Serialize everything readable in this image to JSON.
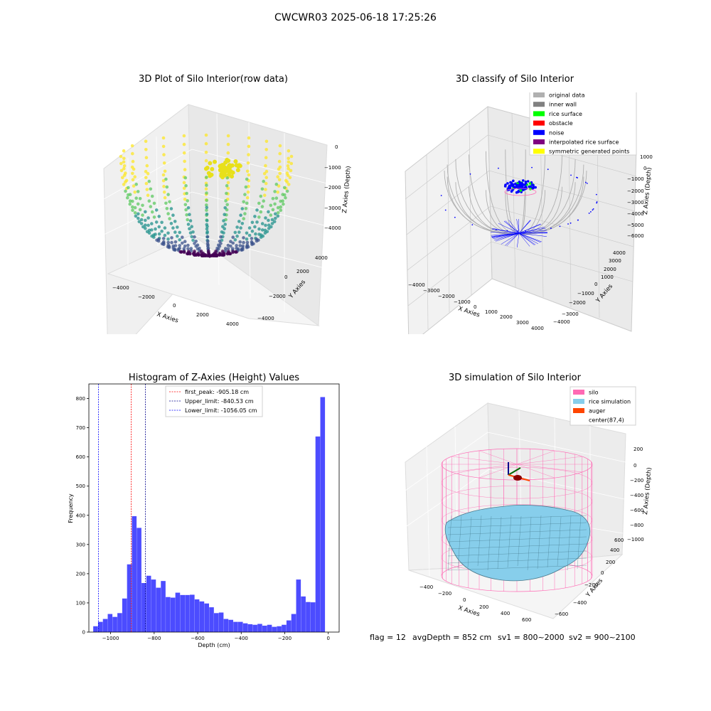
{
  "suptitle": "CWCWR03 2025-06-18 17:25:26",
  "footer": {
    "flag": "flag = 12",
    "avg": "avgDepth = 852 cm",
    "sv1": "sv1 = 800~2000",
    "sv2": "sv2 = 900~2100"
  },
  "chart_data": [
    {
      "type": "scatter",
      "subtype": "3d-scatter",
      "title": "3D Plot of Silo Interior(row data)",
      "xlabel": "X Axies",
      "ylabel": "Y Axies",
      "zlabel": "Z Axies (Depth)",
      "xticks": [
        "−4000",
        "−2000",
        "0",
        "2000",
        "4000"
      ],
      "yticks": [
        "−4000",
        "−2000",
        "0",
        "2000",
        "4000"
      ],
      "zticks": [
        "−4000",
        "−3000",
        "−2000",
        "−1000",
        "0"
      ],
      "colormap": "viridis"
    },
    {
      "type": "scatter",
      "subtype": "3d-scatter",
      "title": "3D classify of Silo Interior",
      "xlabel": "X Axies",
      "ylabel": "Y Axies",
      "zlabel": "Z Axies (Depth)",
      "xticks": [
        "−4000",
        "−3000",
        "−2000",
        "−1000",
        "0",
        "1000",
        "2000",
        "3000",
        "4000"
      ],
      "yticks": [
        "−4000",
        "−3000",
        "−2000",
        "−1000",
        "0",
        "1000",
        "2000",
        "3000",
        "4000"
      ],
      "zticks": [
        "−6000",
        "−5000",
        "−4000",
        "−3000",
        "−2000",
        "−1000",
        "0",
        "1000"
      ],
      "legend": [
        {
          "label": "original data",
          "color": "#b0b0b0"
        },
        {
          "label": "inner wall",
          "color": "#808080"
        },
        {
          "label": "rice surface",
          "color": "#00ff00"
        },
        {
          "label": "obstacle",
          "color": "#ff0000"
        },
        {
          "label": "noise",
          "color": "#0000ff"
        },
        {
          "label": "interpolated rice surface",
          "color": "#800080"
        },
        {
          "label": "symmetric generated points",
          "color": "#ffff00"
        }
      ],
      "legend_position": "top-right"
    },
    {
      "type": "bar",
      "subtype": "histogram",
      "title": "Histogram of Z-Axies (Height) Values",
      "xlabel": "Depth (cm)",
      "ylabel": "Frequency",
      "xlim": [
        -1100,
        50
      ],
      "ylim": [
        0,
        850
      ],
      "xticks": [
        -1000,
        -800,
        -600,
        -400,
        -200,
        0
      ],
      "xtick_labels": [
        "−1000",
        "−800",
        "−600",
        "−400",
        "−200",
        "0"
      ],
      "yticks": [
        0,
        100,
        200,
        300,
        400,
        500,
        600,
        700,
        800
      ],
      "bin_start": -1080,
      "bin_width": 22.2,
      "values": [
        20,
        35,
        45,
        62,
        52,
        65,
        115,
        232,
        397,
        357,
        168,
        193,
        180,
        152,
        175,
        120,
        118,
        135,
        127,
        127,
        128,
        112,
        105,
        98,
        85,
        65,
        67,
        45,
        42,
        35,
        35,
        30,
        27,
        25,
        28,
        22,
        25,
        18,
        20,
        25,
        40,
        62,
        180,
        122,
        103,
        102,
        670,
        805
      ],
      "bar_color": "#0000ff",
      "vlines": [
        {
          "label": "first_peak: -905.18 cm",
          "x": -905.18,
          "color": "#ff0000"
        },
        {
          "label": "Upper_limit: -840.53 cm",
          "x": -840.53,
          "color": "#00008b"
        },
        {
          "label": "Lower_limit: -1056.05 cm",
          "x": -1056.05,
          "color": "#0000ff"
        }
      ],
      "legend_position": "top-center"
    },
    {
      "type": "area",
      "subtype": "3d-surface",
      "title": "3D simulation of Silo Interior",
      "xlabel": "X Axies",
      "ylabel": "Y Axies",
      "zlabel": "Z Axies (Depth)",
      "xticks": [
        "−400",
        "−200",
        "0",
        "200",
        "400",
        "600"
      ],
      "yticks": [
        "−600",
        "−400",
        "−200",
        "0",
        "200",
        "400",
        "600"
      ],
      "zticks": [
        "−1000",
        "−800",
        "−600",
        "−400",
        "−200",
        "0",
        "200"
      ],
      "legend": [
        {
          "label": "silo",
          "color": "#ff69b4"
        },
        {
          "label": "rice simulation",
          "color": "#87ceeb"
        },
        {
          "label": "auger",
          "color": "#ff4500"
        },
        {
          "label": "center(87,4)",
          "color": ""
        }
      ],
      "legend_position": "top-right"
    }
  ]
}
